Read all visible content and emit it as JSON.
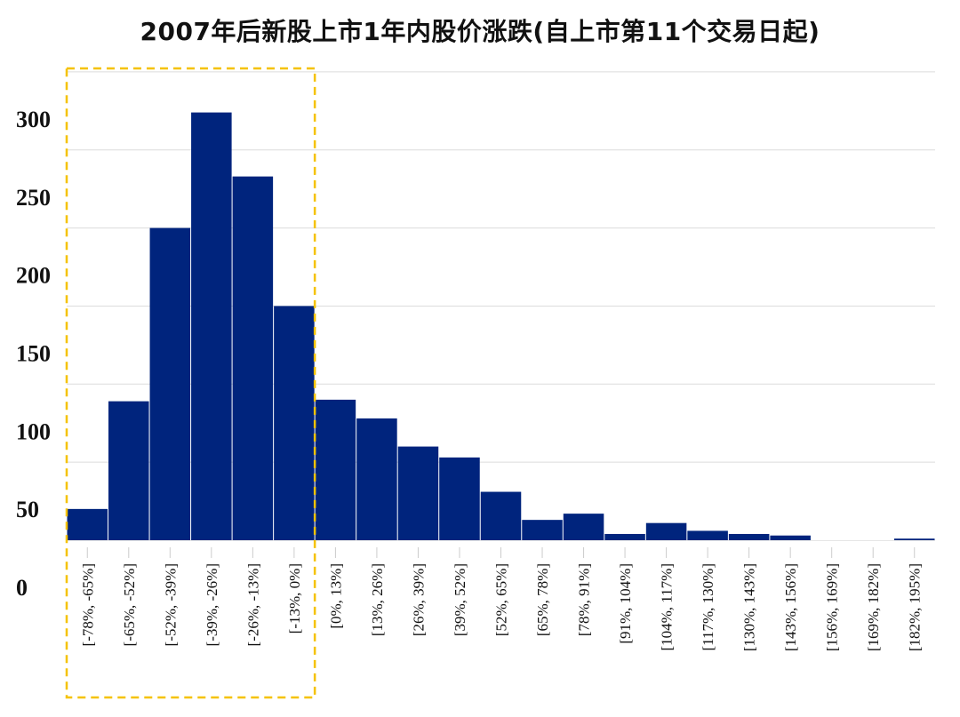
{
  "chart_data": {
    "type": "bar",
    "title": "2007年后新股上市1年内股价涨跌(自上市第11个交易日起)",
    "categories": [
      "[-78%, -65%]",
      "[-65%, -52%]",
      "[-52%, -39%]",
      "[-39%, -26%]",
      "[-26%, -13%]",
      "[-13%, 0%]",
      "[0%, 13%]",
      "[13%, 26%]",
      "[26%, 39%]",
      "[39%, 52%]",
      "[52%, 65%]",
      "[65%, 78%]",
      "[78%, 91%]",
      "[91%, 104%]",
      "[104%, 117%]",
      "[117%, 130%]",
      "[130%, 143%]",
      "[143%, 156%]",
      "[156%, 169%]",
      "[169%, 182%]",
      "[182%, 195%]"
    ],
    "values": [
      20,
      89,
      200,
      274,
      233,
      150,
      90,
      78,
      60,
      53,
      31,
      13,
      17,
      4,
      11,
      6,
      4,
      3,
      0,
      0,
      1
    ],
    "yticks": [
      0,
      50,
      100,
      150,
      200,
      250,
      300
    ],
    "ylim": [
      0,
      300
    ],
    "grid": true,
    "bar_color": "#00247d",
    "highlight": {
      "from_index": 0,
      "to_index": 5,
      "color": "#f5c200",
      "style": "dashed"
    }
  }
}
